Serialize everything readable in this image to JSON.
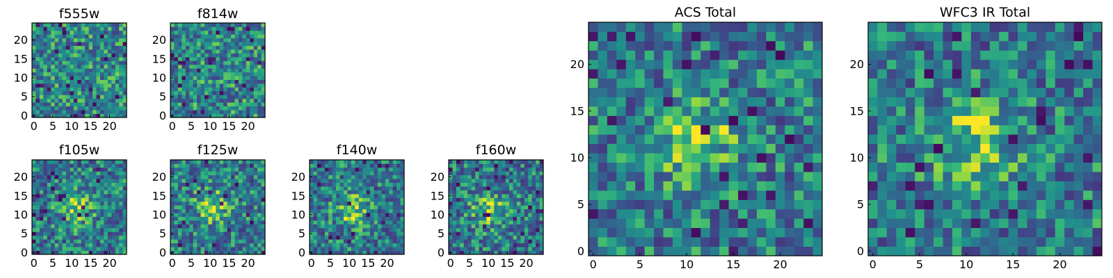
{
  "chart_data": {
    "type": "heatmap",
    "colormap": "viridis",
    "grid_size": 25,
    "panels": [
      {
        "id": "f555w",
        "title": "f555w",
        "xticks": [
          0,
          5,
          10,
          15,
          20
        ],
        "yticks": [
          0,
          5,
          10,
          15,
          20
        ],
        "blob": null,
        "seed": 11
      },
      {
        "id": "f814w",
        "title": "f814w",
        "xticks": [
          0,
          5,
          10,
          15,
          20
        ],
        "yticks": [
          0,
          5,
          10,
          15,
          20
        ],
        "blob": null,
        "seed": 23
      },
      {
        "id": "f105w",
        "title": "f105w",
        "xticks": [
          0,
          5,
          10,
          15,
          20
        ],
        "yticks": [
          0,
          5,
          10,
          15,
          20
        ],
        "blob": [
          11,
          12
        ],
        "seed": 37
      },
      {
        "id": "f125w",
        "title": "f125w",
        "xticks": [
          0,
          5,
          10,
          15,
          20
        ],
        "yticks": [
          0,
          5,
          10,
          15,
          20
        ],
        "blob": [
          11,
          12
        ],
        "seed": 41
      },
      {
        "id": "f140w",
        "title": "f140w",
        "xticks": [
          0,
          5,
          10,
          15,
          20
        ],
        "yticks": [
          0,
          5,
          10,
          15,
          20
        ],
        "blob": [
          11,
          11
        ],
        "seed": 53
      },
      {
        "id": "f160w",
        "title": "f160w",
        "xticks": [
          0,
          5,
          10,
          15,
          20
        ],
        "yticks": [
          0,
          5,
          10,
          15,
          20
        ],
        "blob": [
          10,
          11
        ],
        "seed": 67
      },
      {
        "id": "acs-total",
        "title": "ACS Total",
        "xticks": [
          0,
          5,
          10,
          15,
          20
        ],
        "yticks": [
          0,
          5,
          10,
          15,
          20
        ],
        "blob": [
          11,
          12
        ],
        "seed": 71
      },
      {
        "id": "wfc3-ir-total",
        "title": "WFC3 IR Total",
        "xticks": [
          0,
          5,
          10,
          15,
          20
        ],
        "yticks": [
          0,
          5,
          10,
          15,
          20
        ],
        "blob": [
          11,
          12
        ],
        "seed": 89
      }
    ]
  }
}
